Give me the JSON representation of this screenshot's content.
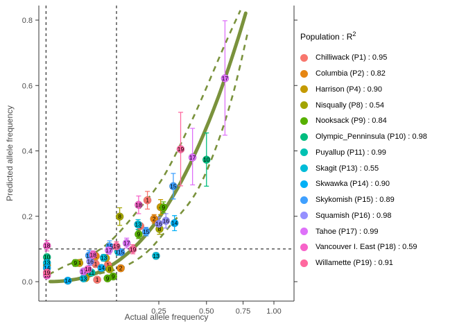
{
  "legend": {
    "title_base": "Population : R",
    "title_sup": "2"
  },
  "chart_data": {
    "type": "scatter",
    "title": "",
    "xlabel": "Actual allele frequency",
    "ylabel": "Predicted allele frequency",
    "x_scale": "sqrt",
    "y_scale": "linear",
    "xlim": [
      0,
      1.05
    ],
    "ylim": [
      -0.06,
      0.83
    ],
    "grid": "off",
    "legend_position": "right",
    "x_ticks": {
      "values": [
        0.25,
        0.5,
        0.75,
        1.0
      ],
      "labels": [
        "0.25",
        "0.50",
        "0.75",
        "1.00"
      ]
    },
    "y_ticks": {
      "values": [
        0.0,
        0.2,
        0.4,
        0.6,
        0.8
      ],
      "labels": [
        "0.0",
        "0.2",
        "0.4",
        "0.6",
        "0.8"
      ]
    },
    "reference_lines": {
      "vlines_x": [
        0.0001,
        0.1
      ],
      "hline_y": 0.1,
      "color": "#000000",
      "style": "dashed"
    },
    "trend_curve": {
      "color": "#7A923C",
      "formula": "y = 1.148 * x^1.282",
      "a": 1.148,
      "b": 1.282,
      "x_range": [
        0.0008,
        0.77
      ],
      "width": 5
    },
    "confidence_band": {
      "color": "#7A923C",
      "style": "dashed",
      "upper": [
        [
          0.0005,
          0.022
        ],
        [
          0.01,
          0.05
        ],
        [
          0.04,
          0.08
        ],
        [
          0.085,
          0.125
        ],
        [
          0.16,
          0.21
        ],
        [
          0.27,
          0.32
        ],
        [
          0.42,
          0.5
        ],
        [
          0.62,
          0.726
        ],
        [
          0.73,
          0.83
        ]
      ],
      "lower": [
        [
          0.004,
          0.002
        ],
        [
          0.02,
          0.01
        ],
        [
          0.06,
          0.025
        ],
        [
          0.12,
          0.045
        ],
        [
          0.2,
          0.09
        ],
        [
          0.3,
          0.17
        ],
        [
          0.435,
          0.27
        ],
        [
          0.56,
          0.41
        ],
        [
          0.68,
          0.58
        ],
        [
          0.79,
          0.77
        ]
      ]
    },
    "series": [
      {
        "population": "Chilliwack",
        "code": "P1",
        "label": "1",
        "r2": "0.95",
        "color": "#F8766D",
        "points": [
          [
            0.051,
            0.054,
            0.044,
            0.064
          ],
          [
            0.054,
            0.006,
            null,
            null
          ],
          [
            0.078,
            0.051,
            0.042,
            0.06
          ],
          [
            0.176,
            0.17,
            null,
            null
          ],
          [
            0.203,
            0.249,
            0.222,
            0.276
          ]
        ]
      },
      {
        "population": "Columbia",
        "code": "P2",
        "label": "2",
        "r2": "0.82",
        "color": "#E68613",
        "points": [
          [
            0.051,
            0.078,
            0.068,
            0.088
          ],
          [
            0.112,
            0.041,
            0.032,
            0.05
          ],
          [
            0.23,
            0.192,
            0.179,
            0.205
          ]
        ]
      },
      {
        "population": "Harrison",
        "code": "P4",
        "label": "4",
        "r2": "0.90",
        "color": "#C49A00",
        "points": [
          [
            0.0002,
            0.05,
            0.044,
            0.056
          ],
          [
            0.024,
            0.057,
            0.048,
            0.066
          ],
          [
            0.033,
            0.011,
            null,
            null
          ],
          [
            0.073,
            0.072,
            null,
            null
          ],
          [
            0.258,
            0.228,
            0.205,
            0.251
          ]
        ]
      },
      {
        "population": "Nisqually",
        "code": "P8",
        "label": "8",
        "r2": "0.54",
        "color": "#A2A400",
        "points": [
          [
            0.036,
            0.03,
            null,
            null
          ],
          [
            0.082,
            0.038,
            null,
            null
          ],
          [
            0.109,
            0.199,
            0.172,
            0.226
          ],
          [
            0.253,
            0.161,
            0.145,
            0.177
          ]
        ]
      },
      {
        "population": "Nooksack",
        "code": "P9",
        "label": "9",
        "r2": "0.84",
        "color": "#57B000",
        "points": [
          [
            0.019,
            0.057,
            0.047,
            0.067
          ],
          [
            0.077,
            0.01,
            null,
            null
          ],
          [
            0.091,
            0.016,
            null,
            null
          ],
          [
            0.17,
            0.145,
            0.132,
            0.158
          ],
          [
            0.271,
            0.227,
            0.21,
            0.244
          ]
        ]
      },
      {
        "population": "Olympic_Penninsula",
        "code": "P10",
        "label": "10",
        "r2": "0.98",
        "color": "#00BD7E",
        "points": [
          [
            0.0002,
            0.075,
            0.066,
            0.084
          ],
          [
            0.5,
            0.373,
            0.292,
            0.455
          ]
        ]
      },
      {
        "population": "Puyallup",
        "code": "P11",
        "label": "11",
        "r2": "0.99",
        "color": "#00C1B2",
        "points": [
          [
            0.043,
            0.028,
            0.02,
            0.036
          ]
        ]
      },
      {
        "population": "Skagit",
        "code": "P13",
        "label": "13",
        "r2": "0.55",
        "color": "#00BCD8",
        "points": [
          [
            0.0002,
            0.058,
            0.051,
            0.065
          ],
          [
            0.03,
            0.01,
            null,
            null
          ],
          [
            0.068,
            0.073,
            0.063,
            0.083
          ],
          [
            0.105,
            0.092,
            0.081,
            0.103
          ],
          [
            0.168,
            0.175,
            0.16,
            0.19
          ],
          [
            0.238,
            0.079,
            0.07,
            0.088
          ]
        ]
      },
      {
        "population": "Skwawka",
        "code": "P14",
        "label": "14",
        "r2": "0.90",
        "color": "#00B0F6",
        "points": [
          [
            0.0002,
            0.042,
            0.036,
            0.048
          ],
          [
            0.011,
            0.003,
            null,
            null
          ],
          [
            0.063,
            0.042,
            0.034,
            0.05
          ],
          [
            0.323,
            0.179,
            0.156,
            0.202
          ]
        ]
      },
      {
        "population": "Skykomish",
        "code": "P15",
        "label": "15",
        "r2": "0.89",
        "color": "#3FA0FF",
        "points": [
          [
            0.039,
            0.08,
            0.065,
            0.095
          ],
          [
            0.082,
            0.108,
            0.091,
            0.125
          ],
          [
            0.113,
            0.09,
            null,
            null
          ],
          [
            0.198,
            0.153,
            0.14,
            0.166
          ],
          [
            0.317,
            0.292,
            0.253,
            0.331
          ]
        ]
      },
      {
        "population": "Squamish",
        "code": "P16",
        "label": "16",
        "r2": "0.98",
        "color": "#9590FF",
        "points": [
          [
            0.041,
            0.062,
            0.05,
            0.074
          ],
          [
            0.25,
            0.177,
            0.157,
            0.197
          ],
          [
            0.282,
            0.186,
            0.164,
            0.208
          ]
        ]
      },
      {
        "population": "Tahoe",
        "code": "P17",
        "label": "17",
        "r2": "0.99",
        "color": "#DE71F9",
        "points": [
          [
            0.03,
            0.031,
            0.024,
            0.038
          ],
          [
            0.08,
            0.096,
            0.084,
            0.108
          ],
          [
            0.13,
            0.118,
            0.103,
            0.133
          ],
          [
            0.418,
            0.38,
            0.296,
            0.469
          ],
          [
            0.62,
            0.622,
            0.448,
            0.798
          ]
        ]
      },
      {
        "population": "Vancouver I. East",
        "code": "P18",
        "label": "18",
        "r2": "0.59",
        "color": "#F763C9",
        "points": [
          [
            0.0002,
            0.11,
            0.094,
            0.126
          ],
          [
            0.0002,
            0.019,
            0.014,
            0.024
          ],
          [
            0.037,
            0.038,
            null,
            null
          ],
          [
            0.046,
            0.082,
            0.07,
            0.094
          ],
          [
            0.17,
            0.235,
            0.208,
            0.262
          ]
        ]
      },
      {
        "population": "Willamette",
        "code": "P19",
        "label": "19",
        "r2": "0.91",
        "color": "#FF689F",
        "points": [
          [
            0.0002,
            0.028,
            0.022,
            0.034
          ],
          [
            0.1,
            0.108,
            0.094,
            0.122
          ],
          [
            0.15,
            0.099,
            0.085,
            0.113
          ],
          [
            0.354,
            0.405,
            0.293,
            0.518
          ]
        ]
      }
    ]
  }
}
